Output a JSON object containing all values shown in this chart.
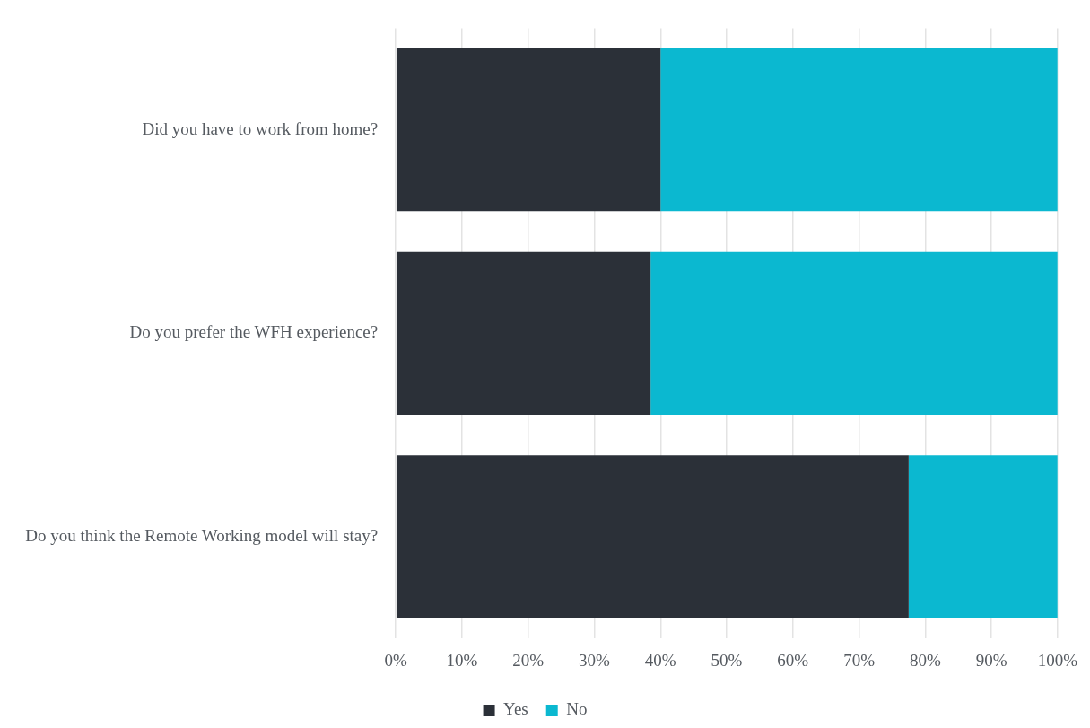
{
  "chart_data": {
    "type": "bar",
    "orientation": "horizontal",
    "stacked": true,
    "categories": [
      "Did you have to work from home?",
      "Do you prefer the WFH experience?",
      "Do you think the Remote Working model will stay?"
    ],
    "series": [
      {
        "name": "Yes",
        "color": "#2b3038",
        "values": [
          40,
          38.5,
          77.5
        ]
      },
      {
        "name": "No",
        "color": "#0bb8d0",
        "values": [
          60,
          61.5,
          22.5
        ]
      }
    ],
    "xlim": [
      0,
      100
    ],
    "xticks": [
      {
        "value": 0,
        "label": "0%"
      },
      {
        "value": 10,
        "label": "10%"
      },
      {
        "value": 20,
        "label": "20%"
      },
      {
        "value": 30,
        "label": "30%"
      },
      {
        "value": 40,
        "label": "40%"
      },
      {
        "value": 50,
        "label": "50%"
      },
      {
        "value": 60,
        "label": "60%"
      },
      {
        "value": 70,
        "label": "70%"
      },
      {
        "value": 80,
        "label": "80%"
      },
      {
        "value": 90,
        "label": "90%"
      },
      {
        "value": 100,
        "label": "100%"
      }
    ],
    "grid": "x",
    "legend": "bottom"
  }
}
